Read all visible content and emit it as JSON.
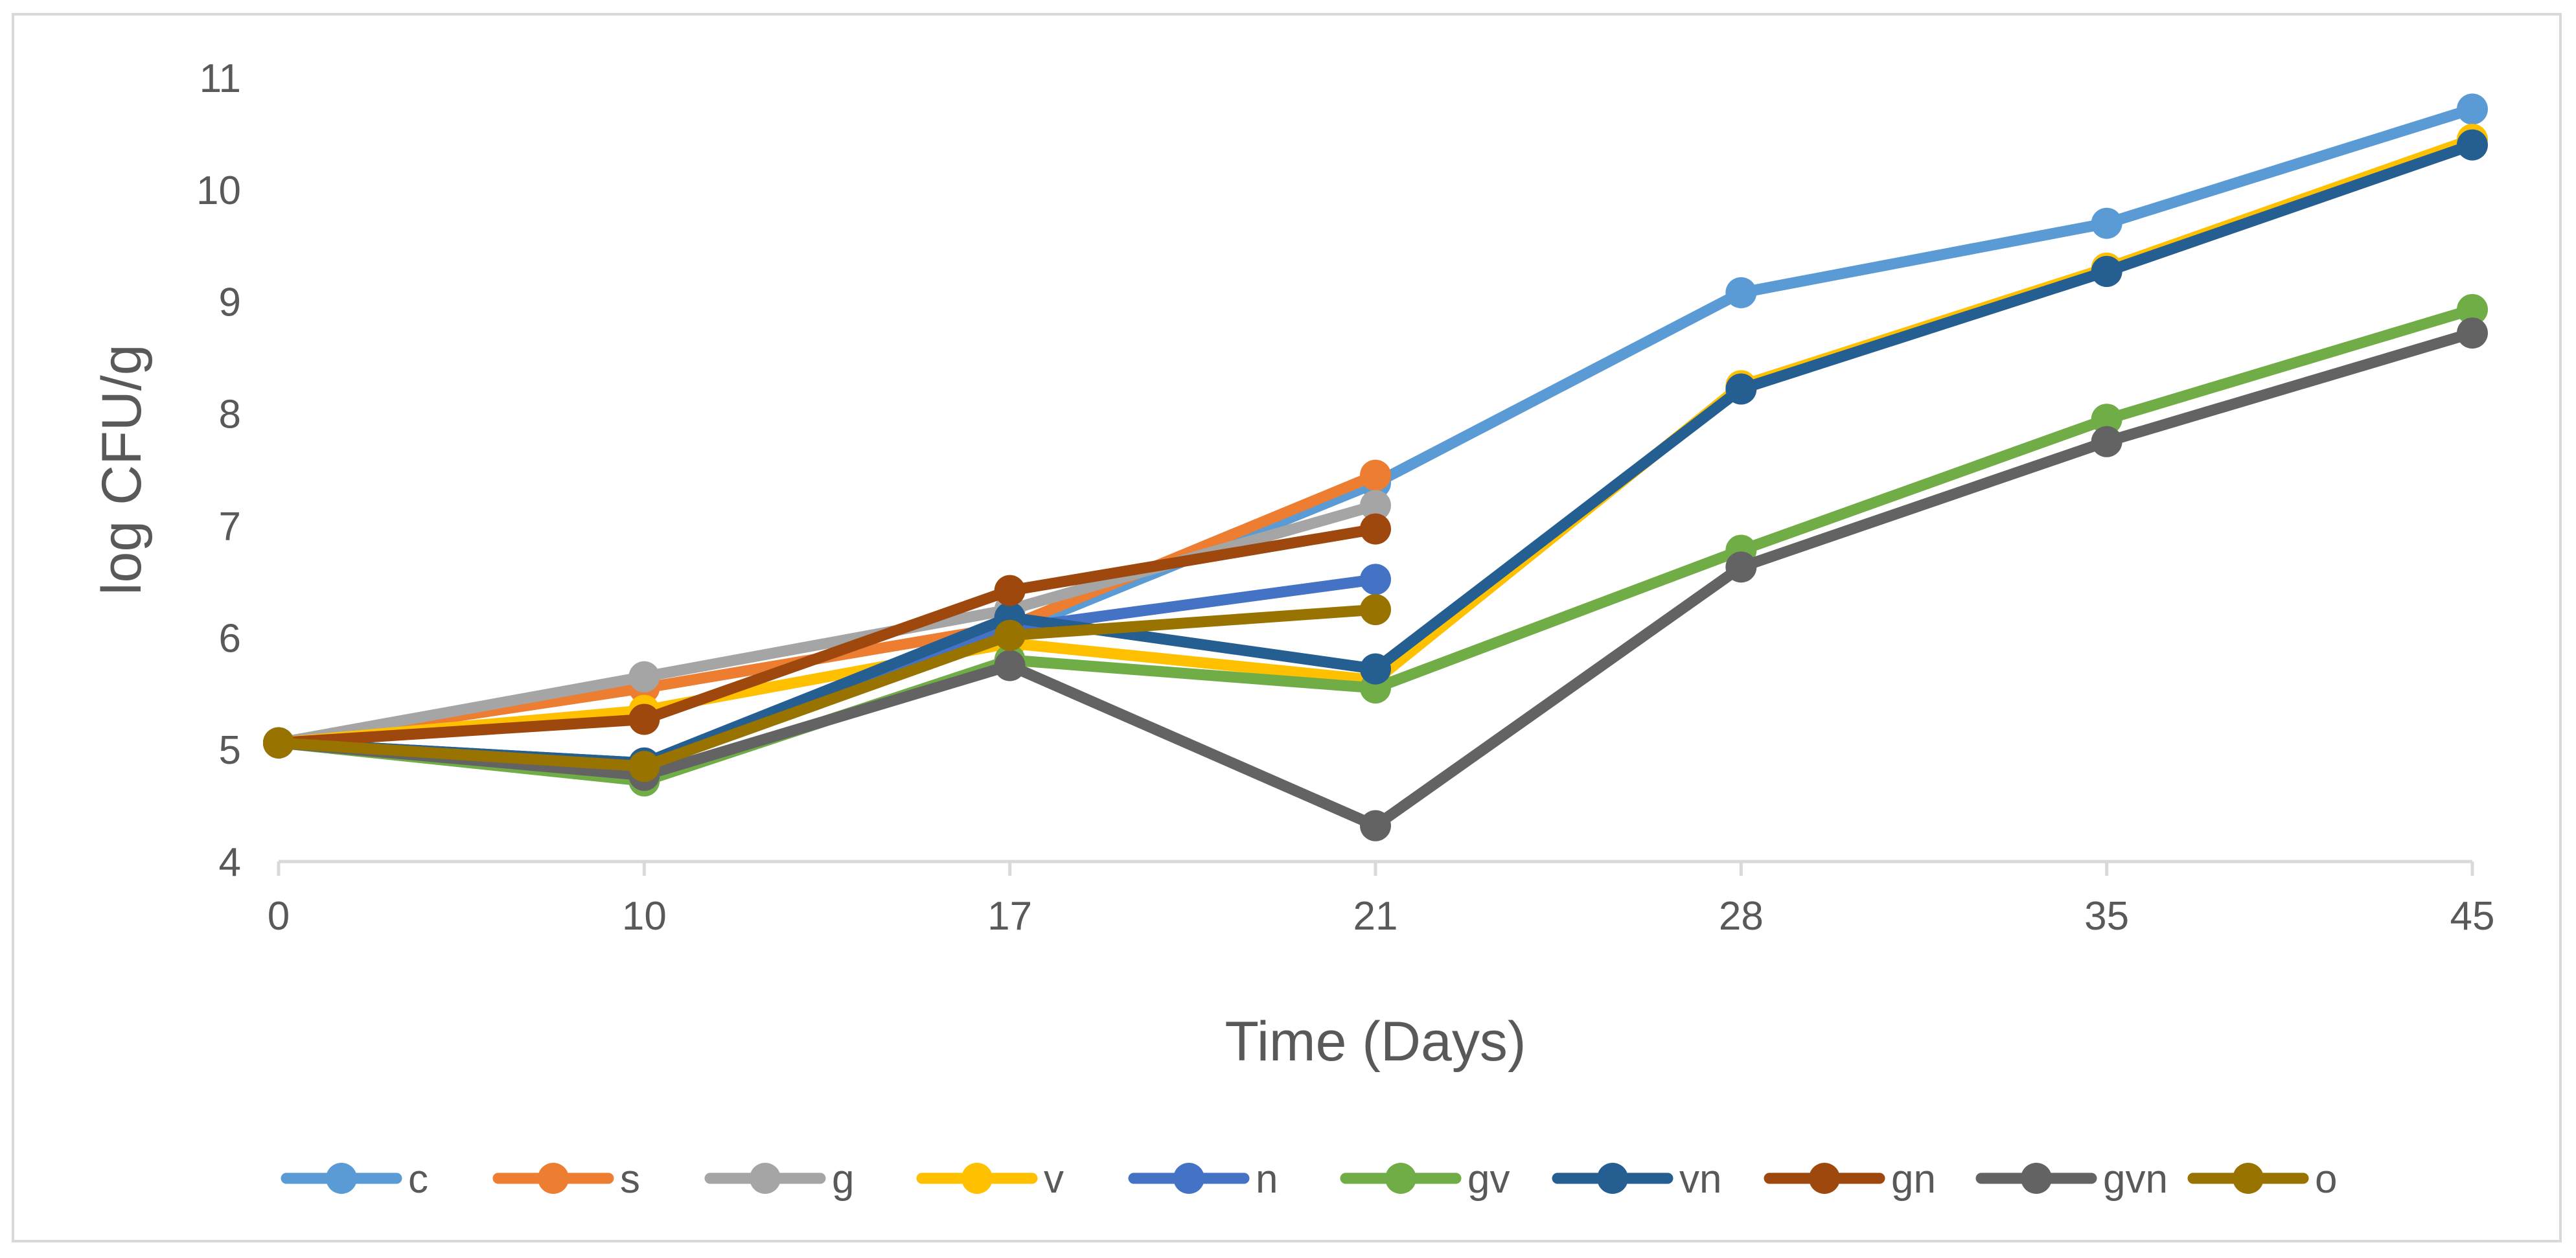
{
  "chart_data": {
    "type": "line",
    "title": "",
    "xlabel": "Time (Days)",
    "ylabel": "log CFU/g",
    "categories": [
      "0",
      "10",
      "17",
      "21",
      "28",
      "35",
      "45"
    ],
    "ylim": [
      4,
      11
    ],
    "yticks": [
      "4",
      "5",
      "6",
      "7",
      "8",
      "9",
      "10",
      "11"
    ],
    "grid": false,
    "legend_position": "bottom",
    "series": [
      {
        "name": "c",
        "color": "#5b9bd5",
        "values": [
          5.06,
          4.88,
          6.05,
          7.38,
          9.08,
          9.7,
          10.72
        ]
      },
      {
        "name": "s",
        "color": "#ed7d31",
        "values": [
          5.06,
          5.55,
          6.1,
          7.45,
          null,
          null,
          null
        ]
      },
      {
        "name": "g",
        "color": "#a5a5a5",
        "values": [
          5.06,
          5.65,
          6.25,
          7.18,
          null,
          null,
          null
        ]
      },
      {
        "name": "v",
        "color": "#ffc000",
        "values": [
          5.06,
          5.35,
          5.95,
          5.62,
          8.25,
          9.3,
          10.45
        ]
      },
      {
        "name": "n",
        "color": "#4472c4",
        "values": [
          5.06,
          4.88,
          6.08,
          6.52,
          null,
          null,
          null
        ]
      },
      {
        "name": "gv",
        "color": "#70ad47",
        "values": [
          5.06,
          4.72,
          5.8,
          5.55,
          6.78,
          7.95,
          8.93
        ]
      },
      {
        "name": "vn",
        "color": "#255e91",
        "values": [
          5.06,
          4.88,
          6.18,
          5.72,
          8.22,
          9.27,
          10.4
        ]
      },
      {
        "name": "gn",
        "color": "#9e480e",
        "values": [
          5.06,
          5.27,
          6.42,
          6.97,
          null,
          null,
          null
        ]
      },
      {
        "name": "gvn",
        "color": "#636363",
        "values": [
          5.06,
          4.77,
          5.75,
          4.32,
          6.63,
          7.75,
          8.72
        ]
      },
      {
        "name": "o",
        "color": "#997300",
        "values": [
          5.06,
          4.85,
          6.02,
          6.25,
          null,
          null,
          null
        ]
      }
    ]
  }
}
